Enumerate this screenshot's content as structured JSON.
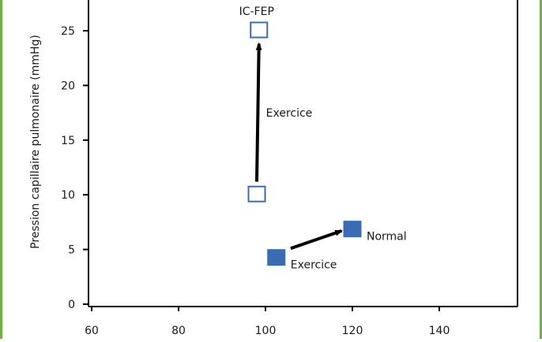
{
  "chart_data": {
    "type": "scatter",
    "title": "",
    "xlabel": "",
    "ylabel": "Pression capillaire pulmonaire (mmHg)",
    "xlim": [
      60,
      158
    ],
    "ylim": [
      0,
      28
    ],
    "xticks": [
      60,
      80,
      100,
      120,
      140
    ],
    "yticks": [
      0,
      5,
      10,
      15,
      20,
      25
    ],
    "grid": false,
    "colors": {
      "marker": "#3a6bb5",
      "arrow": "#000000",
      "axis": "#000000",
      "border": "#6bb33f"
    },
    "series": [
      {
        "name": "IC-FEP",
        "marker": "square-open",
        "points": [
          {
            "x": 98,
            "y": 10
          },
          {
            "x": 98.5,
            "y": 25
          }
        ]
      },
      {
        "name": "Normal",
        "marker": "square-filled",
        "points": [
          {
            "x": 102.5,
            "y": 4.2
          },
          {
            "x": 120,
            "y": 6.8
          }
        ]
      }
    ],
    "annotations": [
      {
        "text": "IC-FEP",
        "x": 98.5,
        "y": 25,
        "position": "above"
      },
      {
        "text": "Exercice",
        "x": 98.3,
        "y": 17.5,
        "position": "right"
      },
      {
        "text": "Normal",
        "x": 120,
        "y": 6.8,
        "position": "right-below"
      },
      {
        "text": "Exercice",
        "x": 102.5,
        "y": 4.2,
        "position": "right-below"
      }
    ],
    "arrows": [
      {
        "from": {
          "x": 98,
          "y": 11.2
        },
        "to": {
          "x": 98.5,
          "y": 23.8
        }
      },
      {
        "from": {
          "x": 105.8,
          "y": 5.1
        },
        "to": {
          "x": 117.5,
          "y": 6.7
        }
      }
    ]
  }
}
